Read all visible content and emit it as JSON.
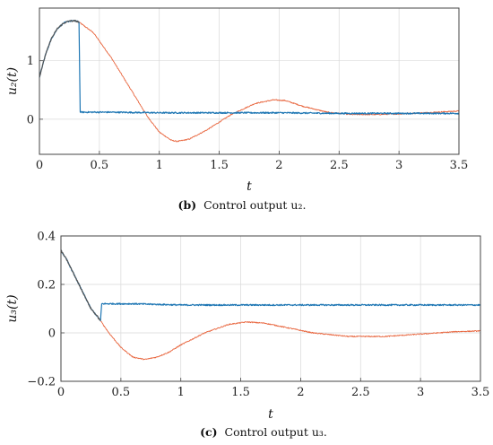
{
  "colors": {
    "blue": "#1f77b4",
    "orange": "#e8643c",
    "gray": "#555555",
    "grid": "#d9d9d9",
    "axis": "#444444"
  },
  "chart_data": [
    {
      "type": "line",
      "panel_label": "(b)",
      "caption": "Control output u₂.",
      "xlabel": "t",
      "ylabel": "u₂(t)",
      "xlim": [
        0,
        3.5
      ],
      "ylim": [
        -0.6,
        1.9
      ],
      "xticks": [
        0,
        0.5,
        1,
        1.5,
        2,
        2.5,
        3,
        3.5
      ],
      "xtick_labels": [
        "0",
        "0.5",
        "1",
        "1.5",
        "2",
        "2.5",
        "3",
        "3.5"
      ],
      "yticks": [
        0,
        1
      ],
      "ytick_labels": [
        "0",
        "1"
      ],
      "grid": true,
      "series": [
        {
          "color": "gray",
          "x": [
            0,
            0.05,
            0.1,
            0.15,
            0.2,
            0.25,
            0.3,
            0.33
          ],
          "y": [
            0.72,
            1.1,
            1.38,
            1.55,
            1.64,
            1.68,
            1.68,
            1.66
          ]
        },
        {
          "color": "orange",
          "x": [
            0.33,
            0.45,
            0.6,
            0.75,
            0.9,
            1.0,
            1.1,
            1.15,
            1.25,
            1.4,
            1.6,
            1.8,
            1.95,
            2.05,
            2.2,
            2.4,
            2.6,
            2.8,
            3.0,
            3.2,
            3.5
          ],
          "y": [
            1.66,
            1.48,
            1.05,
            0.55,
            0.05,
            -0.22,
            -0.36,
            -0.38,
            -0.34,
            -0.18,
            0.08,
            0.27,
            0.33,
            0.32,
            0.22,
            0.12,
            0.08,
            0.08,
            0.09,
            0.11,
            0.14
          ]
        },
        {
          "color": "blue",
          "x": [
            0,
            0.05,
            0.1,
            0.15,
            0.2,
            0.25,
            0.3,
            0.33,
            0.33,
            0.34,
            0.6,
            1.0,
            1.5,
            2.0,
            2.5,
            3.0,
            3.5
          ],
          "y": [
            0.72,
            1.1,
            1.38,
            1.55,
            1.64,
            1.68,
            1.68,
            1.66,
            1.66,
            0.12,
            0.12,
            0.11,
            0.11,
            0.11,
            0.1,
            0.1,
            0.1
          ]
        }
      ]
    },
    {
      "type": "line",
      "panel_label": "(c)",
      "caption": "Control output u₃.",
      "xlabel": "t",
      "ylabel": "u₃(t)",
      "xlim": [
        0,
        3.5
      ],
      "ylim": [
        -0.2,
        0.4
      ],
      "xticks": [
        0,
        0.5,
        1,
        1.5,
        2,
        2.5,
        3,
        3.5
      ],
      "xtick_labels": [
        "0",
        "0.5",
        "1",
        "1.5",
        "2",
        "2.5",
        "3",
        "3.5"
      ],
      "yticks": [
        -0.2,
        0,
        0.2,
        0.4
      ],
      "ytick_labels": [
        "−0.2",
        "0",
        "0.2",
        "0.4"
      ],
      "grid": true,
      "series": [
        {
          "color": "gray",
          "x": [
            0,
            0.05,
            0.1,
            0.15,
            0.2,
            0.25,
            0.3,
            0.33
          ],
          "y": [
            0.34,
            0.3,
            0.25,
            0.2,
            0.15,
            0.1,
            0.07,
            0.05
          ]
        },
        {
          "color": "orange",
          "x": [
            0.33,
            0.4,
            0.5,
            0.6,
            0.7,
            0.8,
            0.9,
            1.0,
            1.2,
            1.4,
            1.55,
            1.7,
            1.9,
            2.1,
            2.4,
            2.7,
            3.0,
            3.3,
            3.5
          ],
          "y": [
            0.05,
            0.0,
            -0.06,
            -0.1,
            -0.11,
            -0.1,
            -0.08,
            -0.05,
            0.0,
            0.035,
            0.045,
            0.04,
            0.02,
            0.0,
            -0.015,
            -0.015,
            -0.005,
            0.005,
            0.008
          ]
        },
        {
          "color": "blue",
          "x": [
            0,
            0.05,
            0.1,
            0.15,
            0.2,
            0.25,
            0.3,
            0.33,
            0.33,
            0.34,
            0.6,
            1.0,
            1.5,
            2.0,
            2.5,
            3.0,
            3.5
          ],
          "y": [
            0.34,
            0.3,
            0.25,
            0.2,
            0.15,
            0.1,
            0.07,
            0.05,
            0.05,
            0.12,
            0.12,
            0.115,
            0.115,
            0.115,
            0.115,
            0.115,
            0.115
          ]
        }
      ]
    }
  ]
}
